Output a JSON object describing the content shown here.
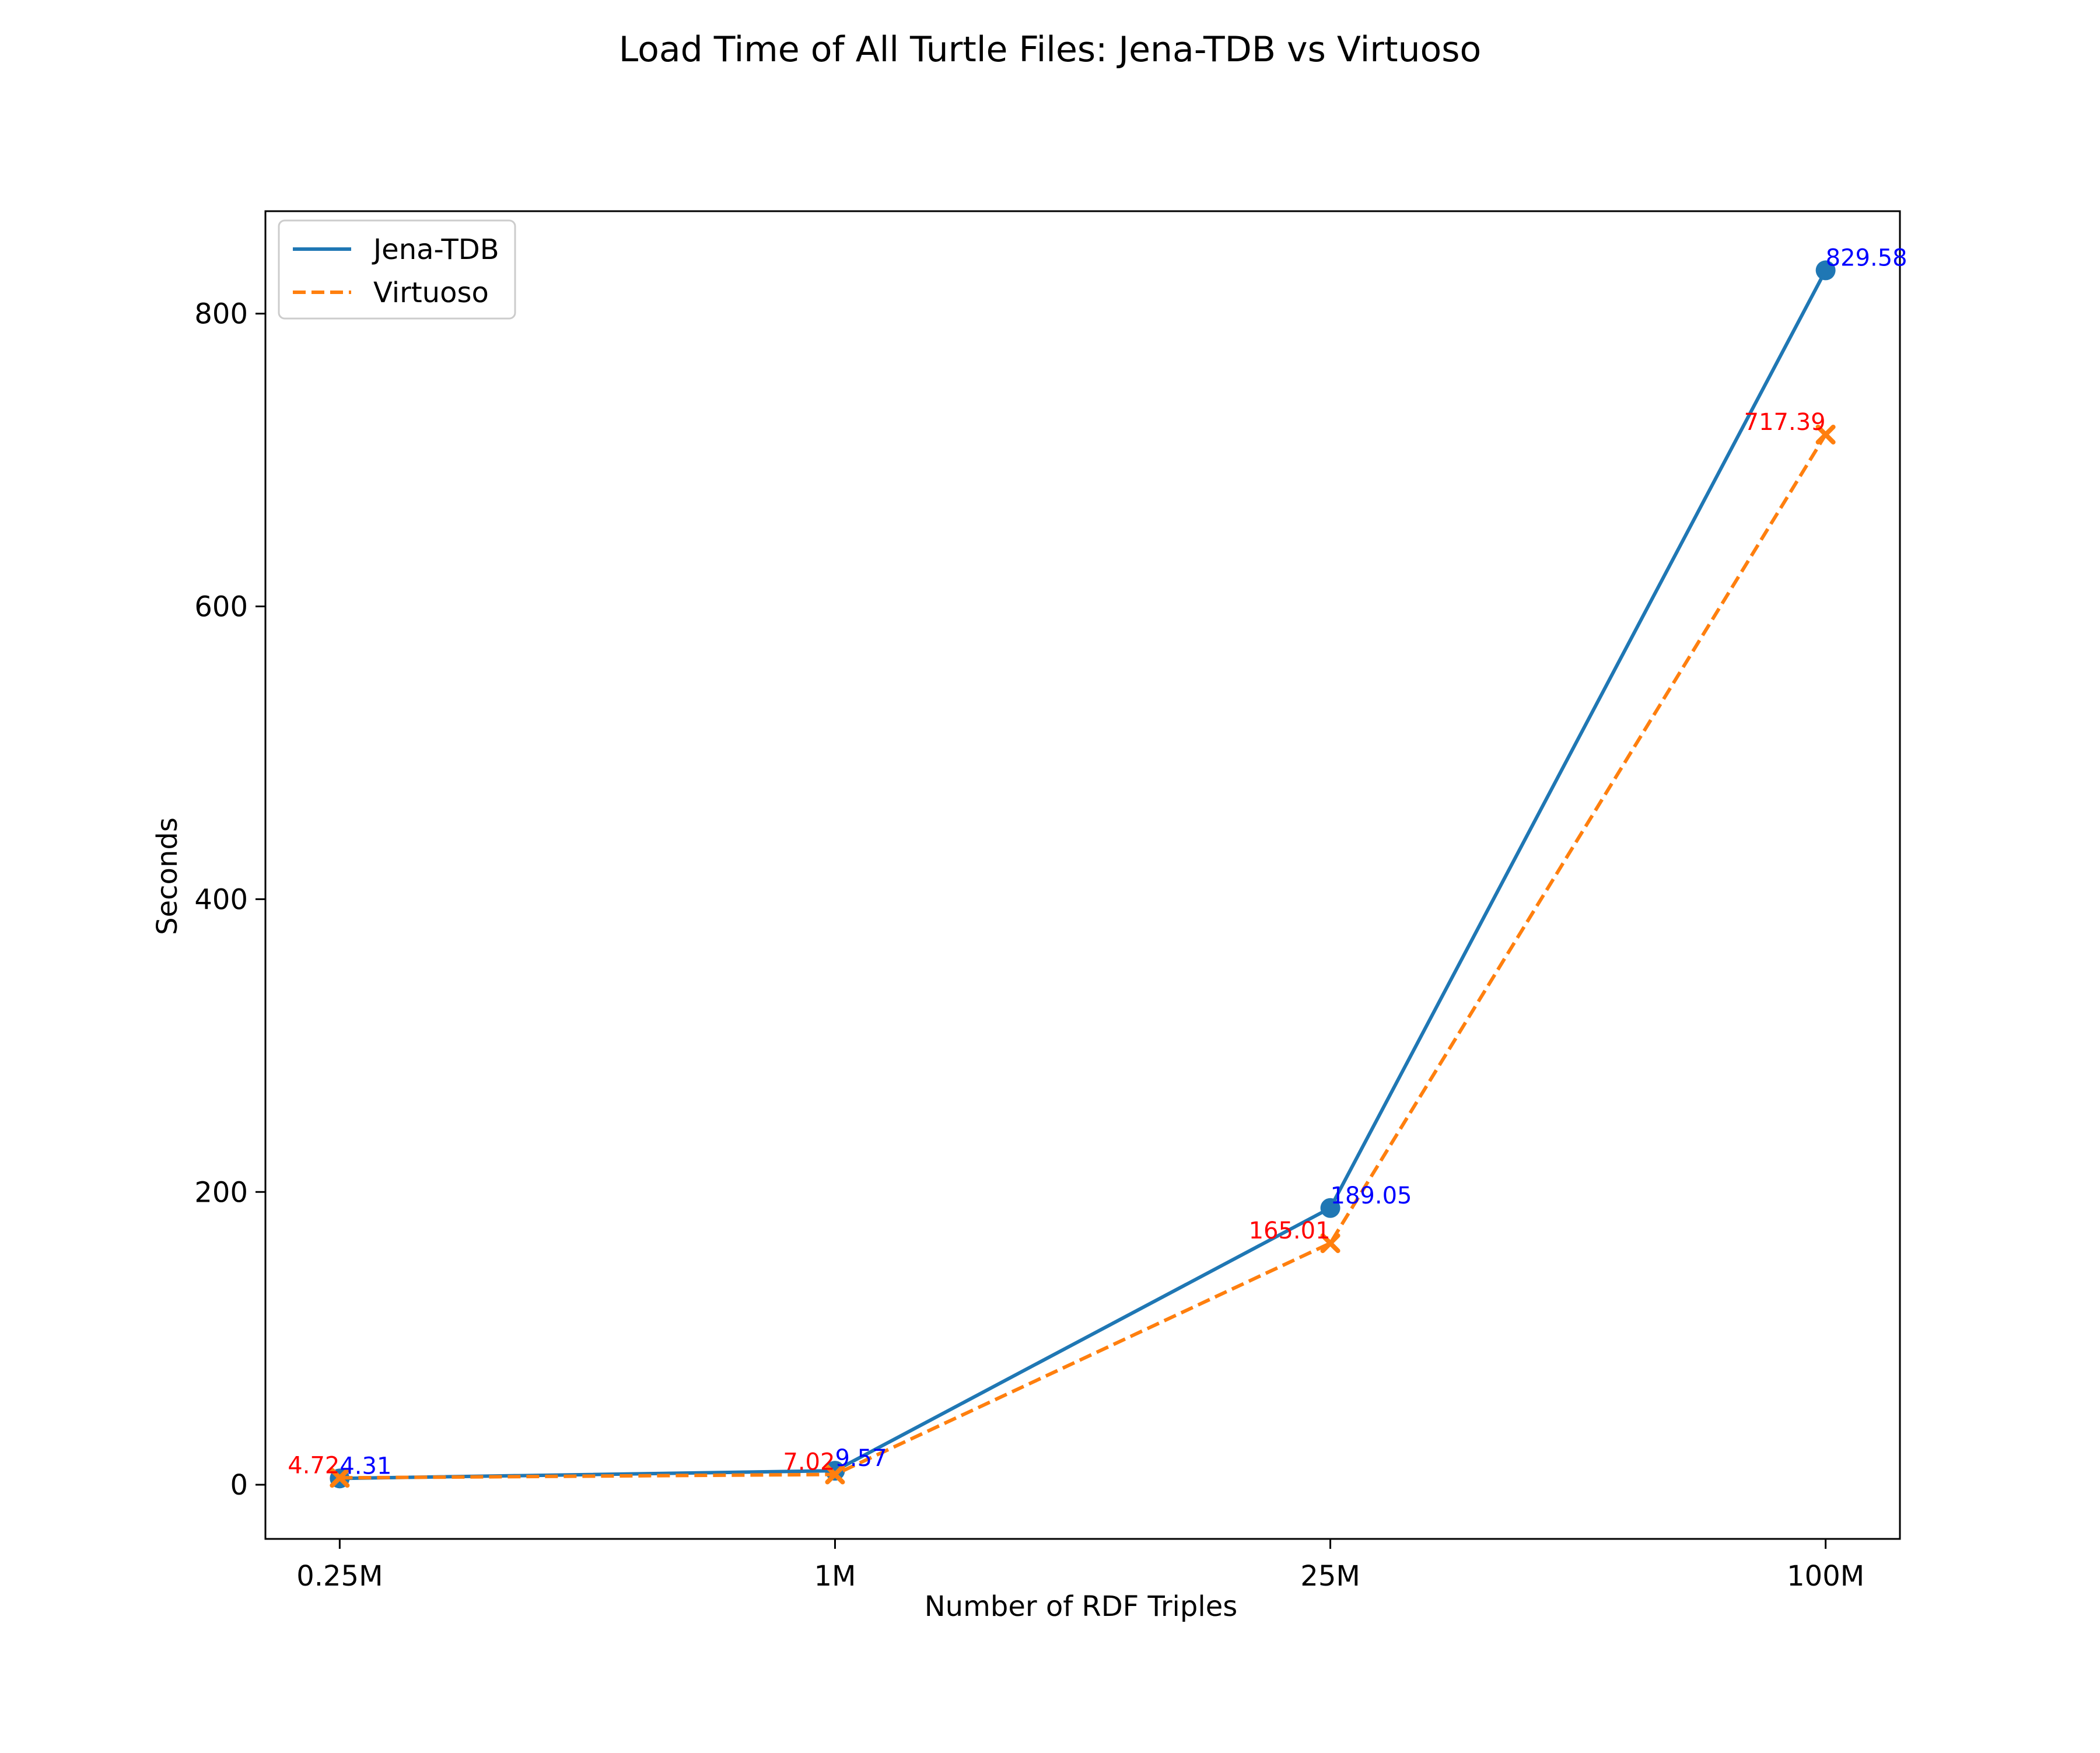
{
  "chart_data": {
    "type": "line",
    "title": "Load Time of All Turtle Files: Jena-TDB vs Virtuoso",
    "xlabel": "Number of RDF Triples",
    "ylabel": "Seconds",
    "categories": [
      "0.25M",
      "1M",
      "25M",
      "100M"
    ],
    "ylim": [
      -37,
      870
    ],
    "yticks": [
      0,
      200,
      400,
      600,
      800
    ],
    "ytick_labels": [
      "0",
      "200",
      "400",
      "600",
      "800"
    ],
    "grid": false,
    "legend_position": "top-left",
    "series": [
      {
        "name": "Jena-TDB",
        "values": [
          4.31,
          9.57,
          189.05,
          829.58
        ],
        "labels": [
          "4.31",
          "9.57",
          "189.05",
          "829.58"
        ],
        "color": "#1f77b4",
        "label_color": "#0000ff",
        "line_style": "solid",
        "marker": "circle"
      },
      {
        "name": "Virtuoso",
        "values": [
          4.72,
          7.02,
          165.01,
          717.39
        ],
        "labels": [
          "4.72",
          "7.02",
          "165.01",
          "717.39"
        ],
        "color": "#ff7f0e",
        "label_color": "#ff0000",
        "line_style": "dashed",
        "marker": "x"
      }
    ]
  }
}
